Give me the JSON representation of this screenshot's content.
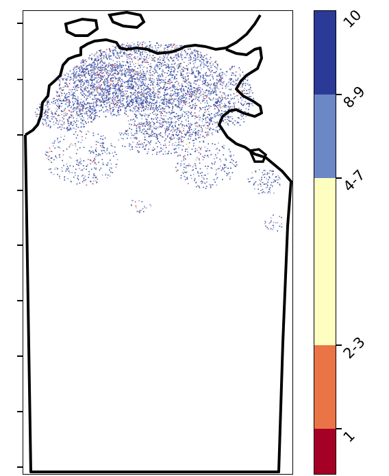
{
  "legend": {
    "classes": [
      {
        "label": "10",
        "color": "#2b3a97",
        "frac_top": 0.0,
        "frac_bottom": 0.18
      },
      {
        "label": "8-9",
        "color": "#6b87c5",
        "frac_top": 0.18,
        "frac_bottom": 0.36
      },
      {
        "label": "4-7",
        "color": "#fefec0",
        "frac_top": 0.36,
        "frac_bottom": 0.72
      },
      {
        "label": "2-3",
        "color": "#eb7447",
        "frac_top": 0.72,
        "frac_bottom": 0.9
      },
      {
        "label": "1",
        "color": "#a50026",
        "frac_top": 0.9,
        "frac_bottom": 1.0
      }
    ]
  },
  "map": {
    "boundary_color": "#000000",
    "dominant_class_color": "#3c4fa3",
    "secondary_class_color": "#8a9bd0"
  }
}
